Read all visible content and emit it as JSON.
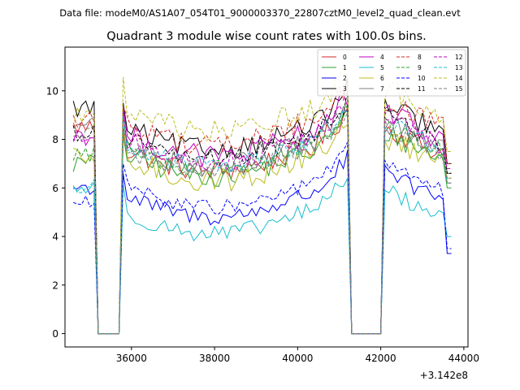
{
  "suptitle": "Data file: modeM0/AS1A07_054T01_9000003370_22807cztM0_level2_quad_clean.evt",
  "chart_data": {
    "type": "line",
    "title": "Quadrant 3 module wise count rates with 100.0s bins.",
    "xlabel": "",
    "ylabel": "",
    "offset_label": "+3.142e8",
    "xlim": [
      34400,
      44100
    ],
    "ylim": [
      -0.55,
      11.8
    ],
    "xticks": [
      36000,
      38000,
      40000,
      42000,
      44000
    ],
    "xtick_labels": [
      "36000",
      "38000",
      "40000",
      "42000",
      "44000"
    ],
    "yticks": [
      0,
      2,
      4,
      6,
      8,
      10
    ],
    "ytick_labels": [
      "0",
      "2",
      "4",
      "6",
      "8",
      "10"
    ],
    "grid": false,
    "legend_placement": "upper-right",
    "gaps": [
      {
        "from": 35100,
        "to": 35800
      },
      {
        "from": 41200,
        "to": 42100
      }
    ],
    "series": [
      {
        "name": "0",
        "color": "#d62728",
        "dash": "solid",
        "level": 7.6,
        "amp": 0.45,
        "edge": 8.5,
        "end": 6.2
      },
      {
        "name": "1",
        "color": "#2ca02c",
        "dash": "solid",
        "level": 7.4,
        "amp": 0.45,
        "edge": 7.0,
        "end": 6.0
      },
      {
        "name": "2",
        "color": "#0000ff",
        "dash": "solid",
        "level": 5.7,
        "amp": 0.35,
        "edge": 6.0,
        "end": 3.3
      },
      {
        "name": "3",
        "color": "#000000",
        "dash": "solid",
        "level": 8.5,
        "amp": 0.45,
        "edge": 9.3,
        "end": 7.0
      },
      {
        "name": "4",
        "color": "#c000c0",
        "dash": "solid",
        "level": 8.2,
        "amp": 0.5,
        "edge": 8.2,
        "end": 6.6
      },
      {
        "name": "5",
        "color": "#17becf",
        "dash": "solid",
        "level": 5.0,
        "amp": 0.35,
        "edge": 6.0,
        "end": 4.0
      },
      {
        "name": "6",
        "color": "#bcbd22",
        "dash": "solid",
        "level": 7.2,
        "amp": 0.5,
        "edge": 7.2,
        "end": 6.4
      },
      {
        "name": "7",
        "color": "#7f7f7f",
        "dash": "solid",
        "level": 7.8,
        "amp": 0.45,
        "edge": 8.6,
        "end": 6.6
      },
      {
        "name": "8",
        "color": "#d62728",
        "dash": "dashed",
        "level": 8.7,
        "amp": 0.45,
        "edge": 8.8,
        "end": 7.0
      },
      {
        "name": "9",
        "color": "#2ca02c",
        "dash": "dashed",
        "level": 7.7,
        "amp": 0.4,
        "edge": 7.4,
        "end": 6.6
      },
      {
        "name": "10",
        "color": "#0000ff",
        "dash": "dashed",
        "level": 6.1,
        "amp": 0.3,
        "edge": 5.4,
        "end": 3.5
      },
      {
        "name": "11",
        "color": "#000000",
        "dash": "dashed",
        "level": 8.1,
        "amp": 0.4,
        "edge": 8.3,
        "end": 6.6
      },
      {
        "name": "12",
        "color": "#c000c0",
        "dash": "dashed",
        "level": 8.0,
        "amp": 0.45,
        "edge": 8.1,
        "end": 6.8
      },
      {
        "name": "13",
        "color": "#17becf",
        "dash": "dashed",
        "level": 7.8,
        "amp": 0.4,
        "edge": 6.0,
        "end": 6.2
      },
      {
        "name": "14",
        "color": "#bcbd22",
        "dash": "dashed",
        "level": 9.2,
        "amp": 0.5,
        "edge": 9.0,
        "end": 7.5
      },
      {
        "name": "15",
        "color": "#7f7f7f",
        "dash": "dashed",
        "level": 7.6,
        "amp": 0.4,
        "edge": 8.2,
        "end": 6.4
      }
    ]
  }
}
